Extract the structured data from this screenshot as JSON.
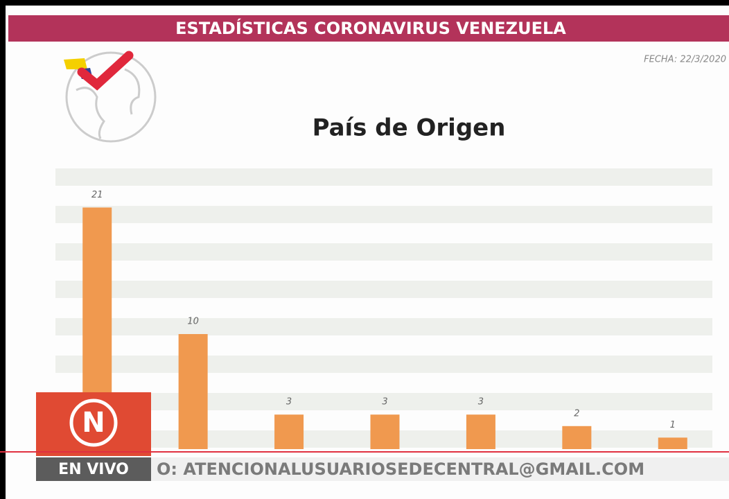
{
  "header": {
    "title": "ESTADÍSTICAS CORONAVIRUS VENEZUELA",
    "date": "FECHA: 22/3/2020"
  },
  "chart_data": {
    "type": "bar",
    "title": "País de Origen",
    "categories": [
      null,
      null,
      null,
      null,
      null,
      null,
      null
    ],
    "values": [
      21,
      10,
      3,
      3,
      3,
      2,
      1
    ],
    "color": "#f0994f",
    "ylim": [
      0,
      24.4
    ]
  },
  "overlay": {
    "logo": "N",
    "live": "EN VIVO",
    "ticker": "O: ATENCIONALUSUARIOSEDECENTRAL@GMAIL.COM"
  }
}
